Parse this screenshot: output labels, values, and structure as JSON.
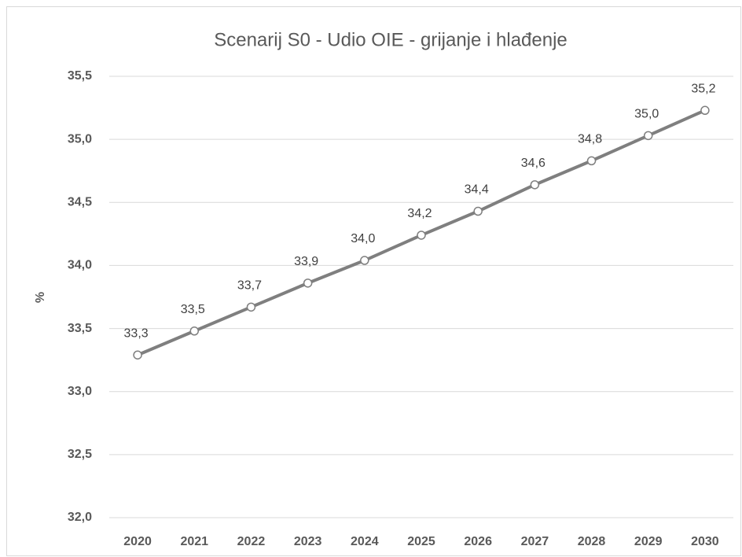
{
  "chart_data": {
    "type": "line",
    "title": "Scenarij S0 - Udio OIE - grijanje i hlađenje",
    "y_label": "%",
    "categories": [
      "2020",
      "2021",
      "2022",
      "2023",
      "2024",
      "2025",
      "2026",
      "2027",
      "2028",
      "2029",
      "2030"
    ],
    "series": [
      {
        "name": "Udio OIE",
        "color": "#7f7f7f",
        "values": [
          33.29,
          33.48,
          33.67,
          33.86,
          34.04,
          34.24,
          34.43,
          34.64,
          34.83,
          35.03,
          35.23
        ],
        "value_labels": [
          "33,3",
          "33,5",
          "33,7",
          "33,9",
          "34,0",
          "34,2",
          "34,4",
          "34,6",
          "34,8",
          "35,0",
          "35,2"
        ]
      }
    ],
    "ylim": [
      32.0,
      35.5
    ],
    "yticks": [
      {
        "value": 32.0,
        "label": "32,0"
      },
      {
        "value": 32.5,
        "label": "32,5"
      },
      {
        "value": 33.0,
        "label": "33,0"
      },
      {
        "value": 33.5,
        "label": "33,5"
      },
      {
        "value": 34.0,
        "label": "34,0"
      },
      {
        "value": 34.5,
        "label": "34,5"
      },
      {
        "value": 35.0,
        "label": "35,0"
      },
      {
        "value": 35.5,
        "label": "35,5"
      }
    ],
    "grid": true
  }
}
